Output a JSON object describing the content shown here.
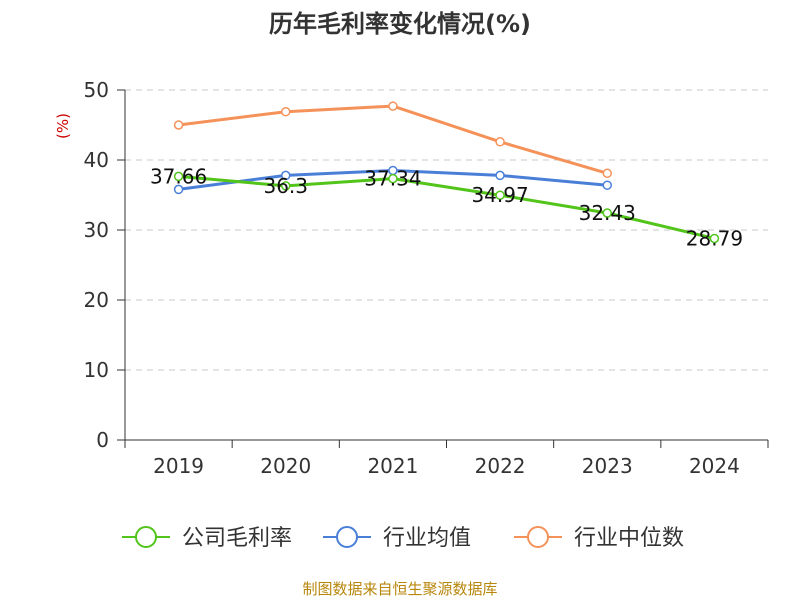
{
  "chart_data": {
    "type": "line",
    "title": "历年毛利率变化情况(%)",
    "ylabel": "(%)",
    "categories": [
      "2019",
      "2020",
      "2021",
      "2022",
      "2023",
      "2024"
    ],
    "ylim": [
      0,
      50
    ],
    "yticks": [
      0,
      10,
      20,
      30,
      40,
      50
    ],
    "grid": true,
    "legend_position": "bottom",
    "series": [
      {
        "name": "公司毛利率",
        "color": "#52c41a",
        "values": [
          37.66,
          36.3,
          37.34,
          34.97,
          32.43,
          28.79
        ],
        "labels": [
          "37.66",
          "36.3",
          "37.34",
          "34.97",
          "32.43",
          "28.79"
        ]
      },
      {
        "name": "行业均值",
        "color": "#4a7fd8",
        "values": [
          35.8,
          37.8,
          38.5,
          37.8,
          36.4,
          null
        ]
      },
      {
        "name": "行业中位数",
        "color": "#f4925a",
        "values": [
          45.0,
          46.9,
          47.7,
          42.6,
          38.1,
          null
        ]
      }
    ]
  },
  "source_text": "制图数据来自恒生聚源数据库"
}
